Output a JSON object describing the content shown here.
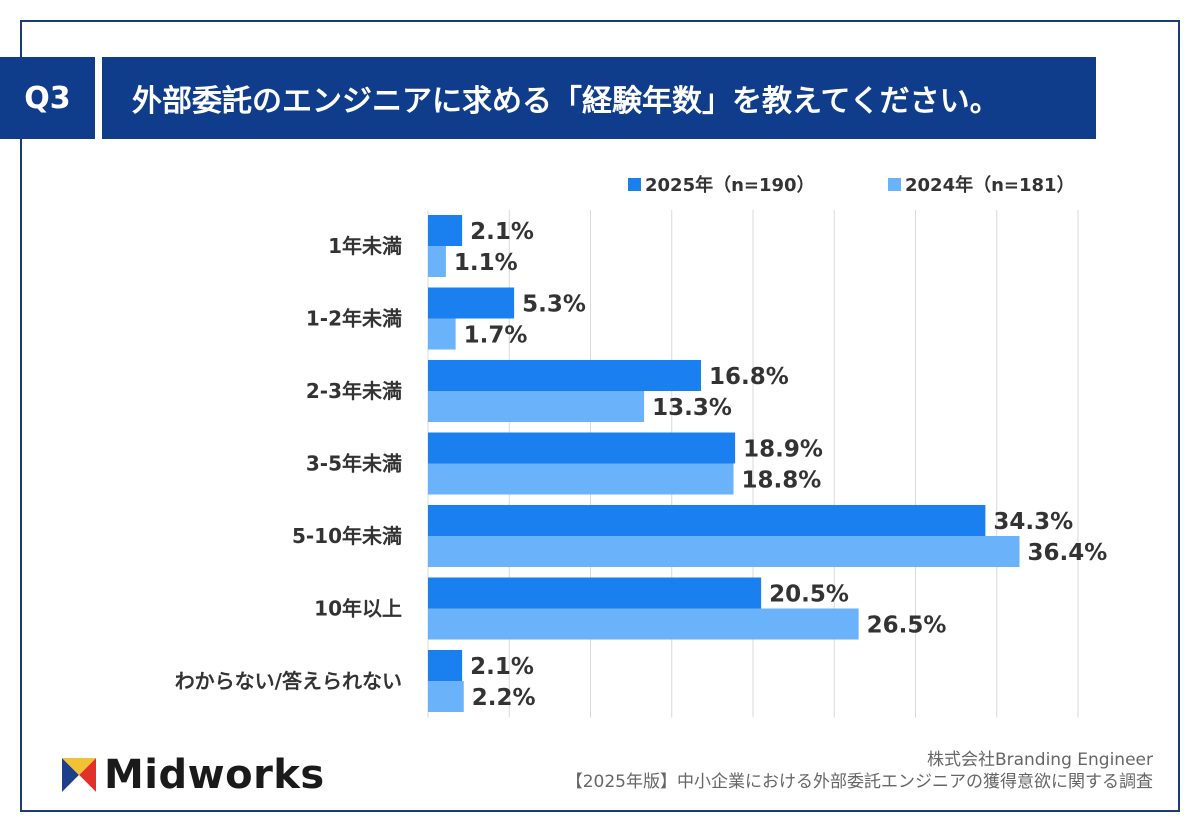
{
  "header": {
    "badge": "Q3",
    "title": "外部委託のエンジニアに求める「経験年数」を教えてください。"
  },
  "colors": {
    "navy": "#0f3d8c",
    "series2025": "#1a7fef",
    "series2024": "#6ab2f9"
  },
  "chart_data": {
    "type": "bar",
    "orientation": "horizontal",
    "categories": [
      "1年未満",
      "1-2年未満",
      "2-3年未満",
      "3-5年未満",
      "5-10年未満",
      "10年以上",
      "わからない/答えられない"
    ],
    "series": [
      {
        "name": "2025年（n=190）",
        "values": [
          2.1,
          5.3,
          16.8,
          18.9,
          34.3,
          20.5,
          2.1
        ],
        "labels": [
          "2.1%",
          "5.3%",
          "16.8%",
          "18.9%",
          "34.3%",
          "20.5%",
          "2.1%"
        ]
      },
      {
        "name": "2024年（n=181）",
        "values": [
          1.1,
          1.7,
          13.3,
          18.8,
          36.4,
          26.5,
          2.2
        ],
        "labels": [
          "1.1%",
          "1.7%",
          "13.3%",
          "18.8%",
          "36.4%",
          "26.5%",
          "2.2%"
        ]
      }
    ],
    "xlim": [
      0,
      40
    ],
    "grid": true,
    "legend": "top-right"
  },
  "footer": {
    "company": "株式会社Branding Engineer",
    "survey": "【2025年版】中小企業における外部委託エンジニアの獲得意欲に関する調査"
  },
  "logo": {
    "text": "Midworks",
    "icon": "midworks-m-icon"
  }
}
